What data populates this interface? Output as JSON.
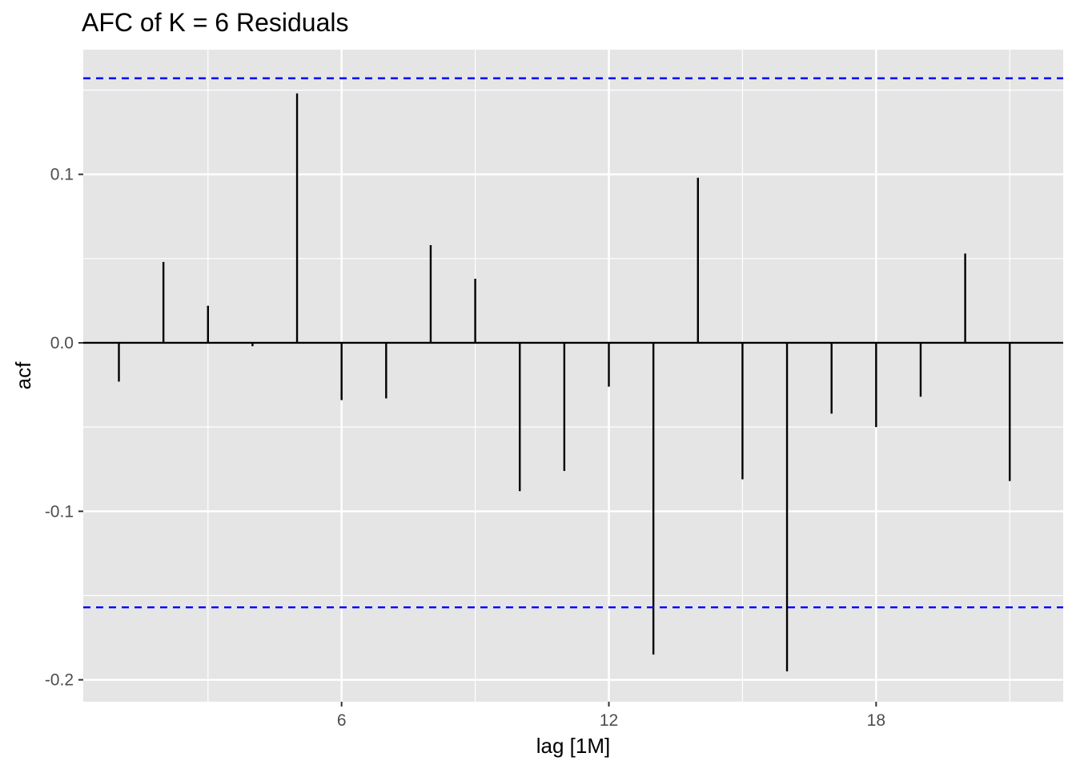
{
  "chart_data": {
    "type": "bar",
    "subtype": "acf-lollipop",
    "title": "AFC of K = 6 Residuals",
    "xlabel": "lag [1M]",
    "ylabel": "acf",
    "x": [
      1,
      2,
      3,
      4,
      5,
      6,
      7,
      8,
      9,
      10,
      11,
      12,
      13,
      14,
      15,
      16,
      17,
      18,
      19,
      20,
      21
    ],
    "values": [
      -0.023,
      0.048,
      0.022,
      -0.002,
      0.148,
      -0.034,
      -0.033,
      0.058,
      0.038,
      -0.088,
      -0.076,
      -0.026,
      -0.185,
      0.098,
      -0.081,
      -0.195,
      -0.042,
      -0.05,
      -0.032,
      0.053,
      -0.082
    ],
    "xlim": [
      0.2,
      22.2
    ],
    "ylim": [
      -0.213,
      0.174
    ],
    "x_ticks": [
      6,
      12,
      18
    ],
    "x_minor_ticks": [
      3,
      9,
      15,
      21
    ],
    "y_ticks": [
      0.1,
      0.0,
      -0.1,
      -0.2
    ],
    "y_minor_ticks": [
      0.15,
      0.05,
      -0.05,
      -0.15
    ],
    "confidence_bound": 0.157,
    "grid": true,
    "colors": {
      "panel": "#e5e5e5",
      "grid": "#ffffff",
      "bar": "#000000",
      "bound": "#0000ff"
    }
  }
}
